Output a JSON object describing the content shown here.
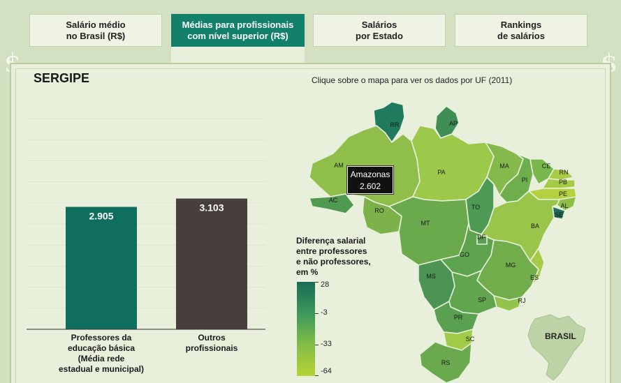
{
  "tabs": [
    {
      "label": "Salário médio\nno Brasil (R$)"
    },
    {
      "label": "Médias para profissionais\ncom nível superior (R$)"
    },
    {
      "label": "Salários\npor Estado"
    },
    {
      "label": "Rankings\nde salários"
    }
  ],
  "active_tab": 1,
  "decor": {
    "dollar_symbol": "$"
  },
  "state_title": "SERGIPE",
  "map_caption": "Clique sobre o mapa para ver os dados por UF (2011)",
  "chart_data": {
    "type": "bar",
    "categories": [
      "Professores da\neducação básica\n(Média rede\nestadual e municipal)",
      "Outros\nprofissionais"
    ],
    "values": [
      2905,
      3103
    ],
    "value_labels": [
      "2.905",
      "3.103"
    ],
    "ylim": [
      0,
      5000
    ],
    "grid": true,
    "colors": [
      "#0f6e5d",
      "#463f3b"
    ]
  },
  "legend": {
    "title": "Diferença salarial\nentre professores\ne não professores,\nem %",
    "ticks": [
      "28",
      "-3",
      "-33",
      "-64"
    ]
  },
  "tooltip": {
    "state": "Amazonas",
    "value": "2.602"
  },
  "states": [
    {
      "uf": "RR",
      "color": "#1f7a5e"
    },
    {
      "uf": "AP",
      "color": "#3e8e55"
    },
    {
      "uf": "AM",
      "color": "#8fbf4a"
    },
    {
      "uf": "PA",
      "color": "#9cc94a"
    },
    {
      "uf": "AC",
      "color": "#4f9a50"
    },
    {
      "uf": "RO",
      "color": "#7cb249"
    },
    {
      "uf": "MT",
      "color": "#6aaa4c"
    },
    {
      "uf": "TO",
      "color": "#4d9a55"
    },
    {
      "uf": "MA",
      "color": "#86b94b"
    },
    {
      "uf": "PI",
      "color": "#6fae4c"
    },
    {
      "uf": "CE",
      "color": "#7ab74a"
    },
    {
      "uf": "RN",
      "color": "#a8cd45"
    },
    {
      "uf": "PB",
      "color": "#a5cb45"
    },
    {
      "uf": "PE",
      "color": "#b2d33f"
    },
    {
      "uf": "AL",
      "color": "#8ec049"
    },
    {
      "uf": "SE",
      "color": "#1f6e5a"
    },
    {
      "uf": "BA",
      "color": "#99c64a"
    },
    {
      "uf": "GO",
      "color": "#5ea44f"
    },
    {
      "uf": "DF",
      "color": "#5c9e52"
    },
    {
      "uf": "MG",
      "color": "#71ad4b"
    },
    {
      "uf": "ES",
      "color": "#a6cb47"
    },
    {
      "uf": "MS",
      "color": "#4c9453"
    },
    {
      "uf": "SP",
      "color": "#62a54f"
    },
    {
      "uf": "RJ",
      "color": "#93c34a"
    },
    {
      "uf": "PR",
      "color": "#59a051"
    },
    {
      "uf": "SC",
      "color": "#a3c948"
    },
    {
      "uf": "RS",
      "color": "#6aa94d"
    }
  ],
  "inset_label": "BRASIL"
}
